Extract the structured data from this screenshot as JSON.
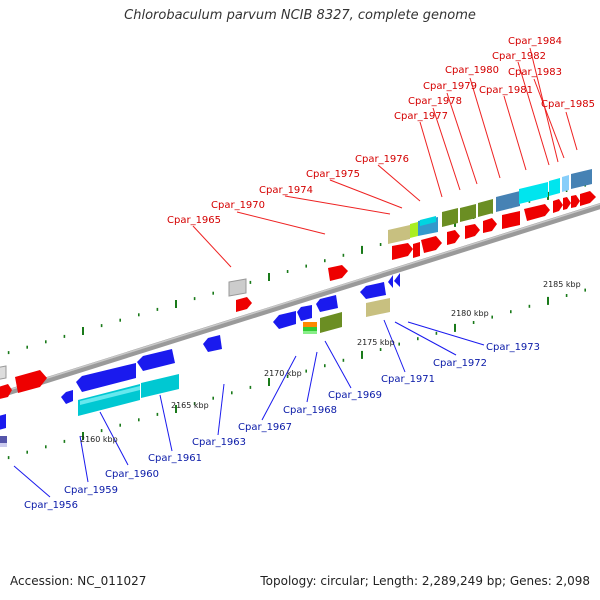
{
  "title": "Chlorobaculum parvum NCIB 8327, complete genome",
  "footer": {
    "accession": "Accession: NC_011027",
    "summary": "Topology: circular; Length: 2,289,249 bp; Genes: 2,098"
  },
  "colors": {
    "top_label": "#d40000",
    "bottom_label": "#0a1aa8",
    "backbone": "#8c8c8c",
    "tick": "#1a7a1a"
  },
  "scale_labels": [
    "2160 kbp",
    "2165 kbp",
    "2170 kbp",
    "2175 kbp",
    "2180 kbp",
    "2185 kbp"
  ],
  "top_genes": [
    "Cpar_1965",
    "Cpar_1970",
    "Cpar_1974",
    "Cpar_1975",
    "Cpar_1976",
    "Cpar_1977",
    "Cpar_1978",
    "Cpar_1979",
    "Cpar_1980",
    "Cpar_1981",
    "Cpar_1982",
    "Cpar_1983",
    "Cpar_1984",
    "Cpar_1985"
  ],
  "bottom_genes": [
    "Cpar_1956",
    "Cpar_1959",
    "Cpar_1960",
    "Cpar_1961",
    "Cpar_1963",
    "Cpar_1967",
    "Cpar_1968",
    "Cpar_1969",
    "Cpar_1971",
    "Cpar_1972",
    "Cpar_1973"
  ]
}
